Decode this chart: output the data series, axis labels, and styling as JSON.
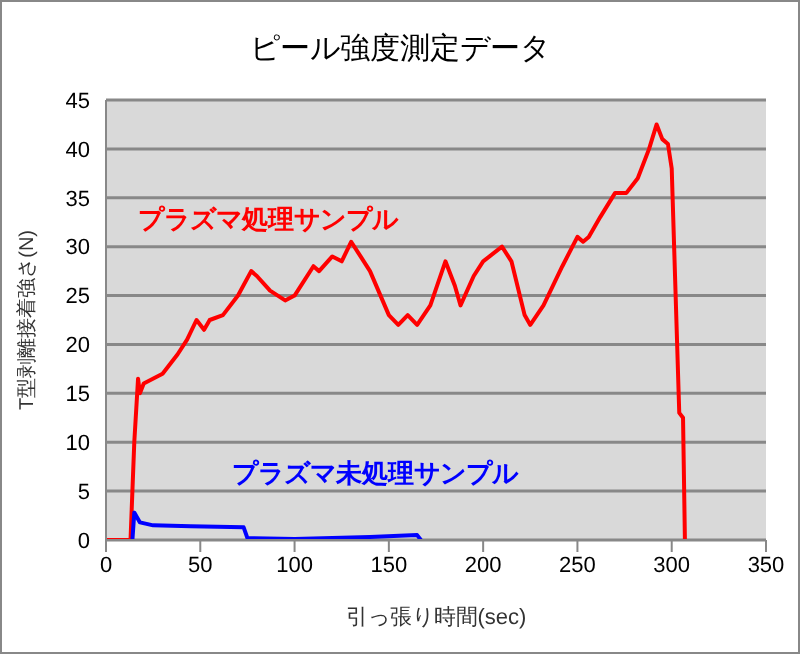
{
  "chart_data": {
    "type": "line",
    "title": "ピール強度測定データ",
    "xlabel": "引っ張り時間(sec)",
    "ylabel": "T型剥離接着強さ(N)",
    "xlim": [
      0,
      350
    ],
    "xticks": [
      0,
      50,
      100,
      150,
      200,
      250,
      300,
      350
    ],
    "ylim": [
      0,
      45
    ],
    "yticks": [
      0,
      5,
      10,
      15,
      20,
      25,
      30,
      35,
      40,
      45
    ],
    "grid": "y",
    "marker": "none",
    "line_style": "solid",
    "series": [
      {
        "name": "プラズマ処理サンプル",
        "color": "#ff0000",
        "x": [
          0,
          13,
          15,
          17,
          18,
          20,
          30,
          38,
          43,
          48,
          52,
          55,
          62,
          70,
          77,
          80,
          87,
          95,
          100,
          110,
          113,
          120,
          125,
          130,
          135,
          140,
          150,
          155,
          160,
          165,
          172,
          180,
          185,
          188,
          195,
          200,
          210,
          215,
          222,
          225,
          232,
          242,
          250,
          253,
          256,
          262,
          270,
          276,
          282,
          288,
          292,
          295,
          298,
          300,
          304,
          306,
          307
        ],
        "values": [
          0,
          0,
          10,
          16.5,
          15,
          16,
          17,
          19,
          20.5,
          22.5,
          21.5,
          22.5,
          23,
          25,
          27.5,
          27,
          25.5,
          24.5,
          25,
          28,
          27.5,
          29,
          28.5,
          30.5,
          29,
          27.5,
          23,
          22,
          23,
          22,
          24,
          28.5,
          26,
          24,
          27,
          28.5,
          30,
          28.5,
          23,
          22,
          24,
          28,
          31,
          30.5,
          31,
          33,
          35.5,
          35.5,
          37,
          40,
          42.5,
          41,
          40.5,
          38,
          13,
          12.5,
          0
        ]
      },
      {
        "name": "プラズマ未処理サンプル",
        "color": "#0000ff",
        "x": [
          14,
          15,
          18,
          25,
          45,
          73,
          75,
          100,
          140,
          165,
          167
        ],
        "values": [
          0,
          2.8,
          1.8,
          1.5,
          1.4,
          1.3,
          0.2,
          0.1,
          0.3,
          0.5,
          0
        ]
      }
    ]
  }
}
